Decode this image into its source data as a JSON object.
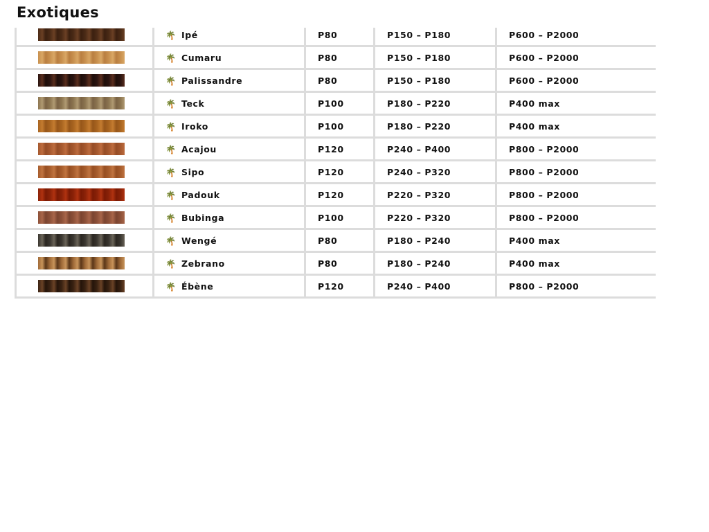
{
  "heading": "Exotiques",
  "icon": "palm-tree-icon",
  "rows": [
    {
      "name": "Ipé",
      "c1": "P80",
      "c2": "P150 – P180",
      "c3": "P600 – P2000",
      "swatch": [
        "#4a2a16",
        "#6b4024",
        "#3b2010"
      ]
    },
    {
      "name": "Cumaru",
      "c1": "P80",
      "c2": "P150 – P180",
      "c3": "P600 – P2000",
      "swatch": [
        "#c8904e",
        "#d9a765",
        "#b97e40"
      ]
    },
    {
      "name": "Palissandre",
      "c1": "P80",
      "c2": "P150 – P180",
      "c3": "P600 – P2000",
      "swatch": [
        "#2a1410",
        "#5a2e1e",
        "#1e0e0a"
      ]
    },
    {
      "name": "Teck",
      "c1": "P100",
      "c2": "P180 – P220",
      "c3": "P400 max",
      "swatch": [
        "#8c7550",
        "#b09a72",
        "#7a6244"
      ]
    },
    {
      "name": "Iroko",
      "c1": "P100",
      "c2": "P180 – P220",
      "c3": "P400 max",
      "swatch": [
        "#a86420",
        "#c47c30",
        "#96561a"
      ]
    },
    {
      "name": "Acajou",
      "c1": "P120",
      "c2": "P240 – P400",
      "c3": "P800 – P2000",
      "swatch": [
        "#a5582e",
        "#bd6c3e",
        "#954c26"
      ]
    },
    {
      "name": "Sipo",
      "c1": "P120",
      "c2": "P240 – P320",
      "c3": "P800 – P2000",
      "swatch": [
        "#a65c2c",
        "#c07440",
        "#964e22"
      ]
    },
    {
      "name": "Padouk",
      "c1": "P120",
      "c2": "P220 – P320",
      "c3": "P800 – P2000",
      "swatch": [
        "#8a2208",
        "#b03210",
        "#7a1a04"
      ]
    },
    {
      "name": "Bubinga",
      "c1": "P100",
      "c2": "P220 – P320",
      "c3": "P800 – P2000",
      "swatch": [
        "#8c5038",
        "#a8664a",
        "#7a4430"
      ]
    },
    {
      "name": "Wengé",
      "c1": "P80",
      "c2": "P180 – P240",
      "c3": "P400 max",
      "swatch": [
        "#3a3630",
        "#6a6458",
        "#2a2620"
      ]
    },
    {
      "name": "Zebrano",
      "c1": "P80",
      "c2": "P180 – P240",
      "c3": "P400 max",
      "swatch": [
        "#a06a38",
        "#c8945a",
        "#5a3618"
      ]
    },
    {
      "name": "Ébène",
      "c1": "P120",
      "c2": "P240 – P400",
      "c3": "P800 – P2000",
      "swatch": [
        "#3a2212",
        "#6a4226",
        "#24140a"
      ]
    }
  ]
}
